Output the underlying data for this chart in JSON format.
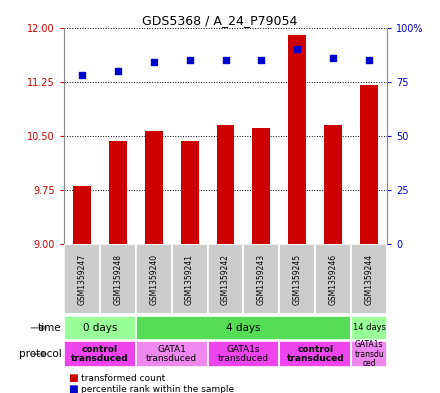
{
  "title": "GDS5368 / A_24_P79054",
  "samples": [
    "GSM1359247",
    "GSM1359248",
    "GSM1359240",
    "GSM1359241",
    "GSM1359242",
    "GSM1359243",
    "GSM1359245",
    "GSM1359246",
    "GSM1359244"
  ],
  "bar_values": [
    9.8,
    10.42,
    10.56,
    10.42,
    10.65,
    10.6,
    11.9,
    10.65,
    11.2
  ],
  "dot_values": [
    78,
    80,
    84,
    85,
    85,
    85,
    90,
    86,
    85
  ],
  "ylim_left": [
    9,
    12
  ],
  "ylim_right": [
    0,
    100
  ],
  "yticks_left": [
    9,
    9.75,
    10.5,
    11.25,
    12
  ],
  "yticks_right": [
    0,
    25,
    50,
    75,
    100
  ],
  "bar_color": "#cc0000",
  "dot_color": "#0000cc",
  "time_groups": [
    {
      "label": "0 days",
      "start": 0,
      "end": 2,
      "color": "#99ff99"
    },
    {
      "label": "4 days",
      "start": 2,
      "end": 8,
      "color": "#55dd55"
    },
    {
      "label": "14 days",
      "start": 8,
      "end": 9,
      "color": "#99ff99"
    }
  ],
  "protocol_groups": [
    {
      "label": "control\ntransduced",
      "start": 0,
      "end": 2,
      "color": "#ee44ee",
      "bold": true
    },
    {
      "label": "GATA1\ntransduced",
      "start": 2,
      "end": 4,
      "color": "#ee88ee",
      "bold": false
    },
    {
      "label": "GATA1s\ntransduced",
      "start": 4,
      "end": 6,
      "color": "#ee44ee",
      "bold": false
    },
    {
      "label": "control\ntransduced",
      "start": 6,
      "end": 8,
      "color": "#ee44ee",
      "bold": true
    },
    {
      "label": "GATA1s\ntransdu\nced",
      "start": 8,
      "end": 9,
      "color": "#ee88ee",
      "bold": false
    }
  ],
  "legend_red": "transformed count",
  "legend_blue": "percentile rank within the sample",
  "time_label": "time",
  "protocol_label": "protocol",
  "bg_color": "#ffffff",
  "plot_bg": "#ffffff",
  "left_axis_color": "#cc0000",
  "right_axis_color": "#0000cc",
  "sample_bg": "#cccccc"
}
